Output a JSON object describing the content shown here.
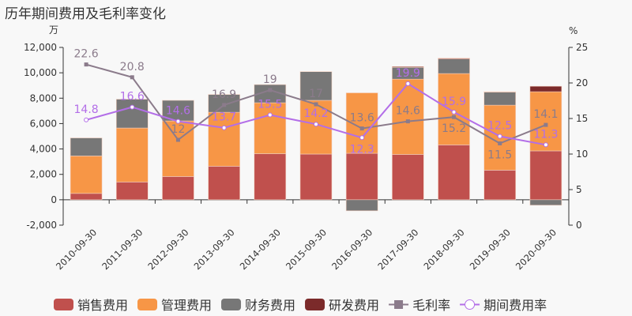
{
  "title": "历年期间费用及毛利率变化",
  "chart_data": {
    "type": "bar",
    "title": "历年期间费用及毛利率变化",
    "ylabel_left": "万",
    "ylabel_right": "%",
    "ylim_left": [
      -2000,
      12000
    ],
    "yticks_left": [
      -2000,
      0,
      2000,
      4000,
      6000,
      8000,
      10000,
      12000
    ],
    "ylim_right": [
      0,
      25
    ],
    "yticks_right": [
      0,
      5,
      10,
      15,
      20,
      25
    ],
    "categories": [
      "2010-09-30",
      "2011-09-30",
      "2012-09-30",
      "2013-09-30",
      "2014-09-30",
      "2015-09-30",
      "2016-09-30",
      "2017-09-30",
      "2018-09-30",
      "2019-09-30",
      "2020-09-30"
    ],
    "series": [
      {
        "name": "销售费用",
        "kind": "bar",
        "color": "#c0504d",
        "values": [
          500,
          1400,
          1830,
          2640,
          3630,
          3600,
          3660,
          3570,
          4320,
          2330,
          3850
        ]
      },
      {
        "name": "管理费用",
        "kind": "bar",
        "color": "#f79646",
        "values": [
          2950,
          4250,
          4380,
          4250,
          4010,
          4230,
          4760,
          5930,
          5620,
          5120,
          4660
        ]
      },
      {
        "name": "财务费用",
        "kind": "bar",
        "color": "#777777",
        "values": [
          1420,
          2270,
          1620,
          1400,
          1430,
          2260,
          -870,
          930,
          1150,
          1030,
          -430
        ]
      },
      {
        "name": "研发费用",
        "kind": "bar",
        "color": "#7b2a2a",
        "values": [
          0,
          0,
          0,
          0,
          0,
          0,
          0,
          60,
          60,
          30,
          430
        ]
      },
      {
        "name": "毛利率",
        "kind": "line",
        "axis": "right",
        "color": "#8b7b8b",
        "values": [
          22.6,
          20.8,
          12,
          16.9,
          19,
          17,
          13.6,
          14.6,
          15.2,
          11.5,
          14.1
        ]
      },
      {
        "name": "期间费用率",
        "kind": "line",
        "axis": "right",
        "color": "#b36ee8",
        "values": [
          14.8,
          16.6,
          14.6,
          13.7,
          15.5,
          14.2,
          12.3,
          19.9,
          15.9,
          12.5,
          11.3
        ]
      }
    ],
    "legend": "bottom",
    "grid": false
  }
}
